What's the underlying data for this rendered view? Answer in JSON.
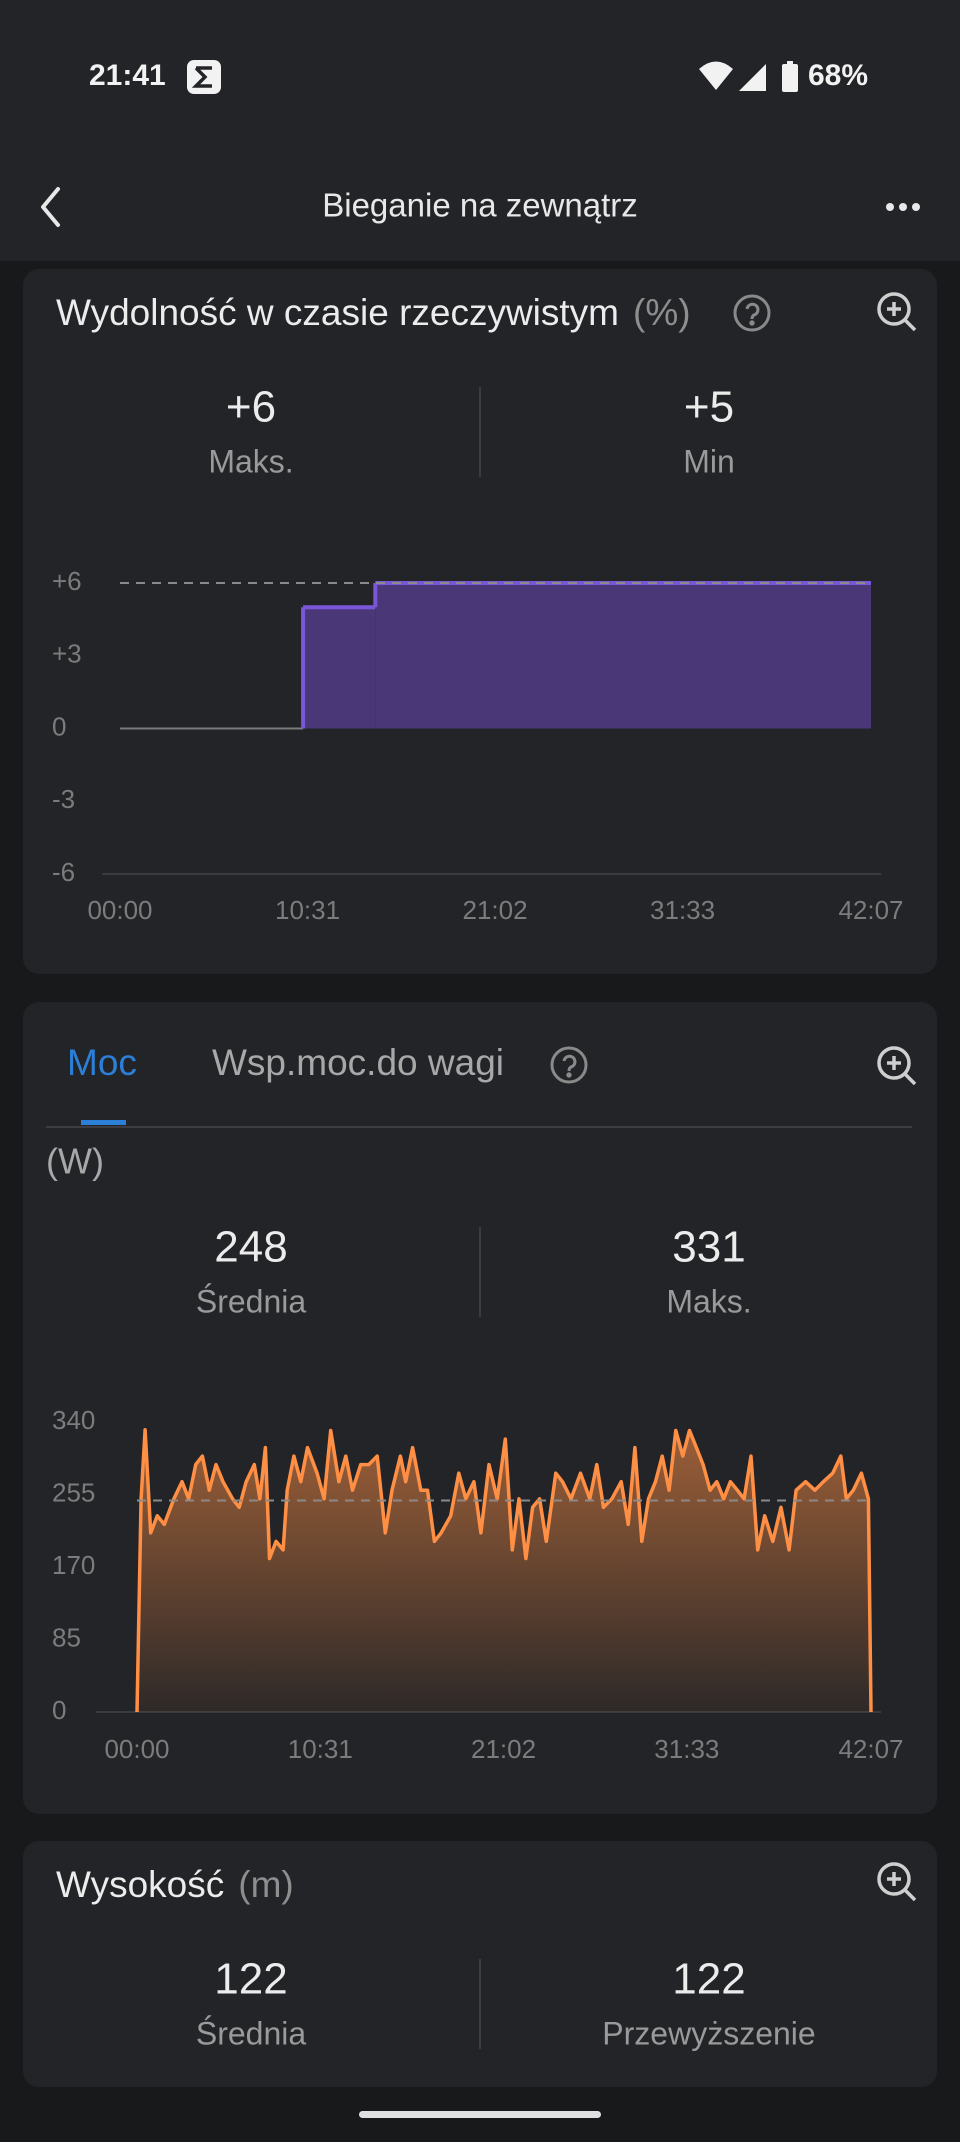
{
  "status_bar": {
    "time": "21:41",
    "battery": "68%"
  },
  "header": {
    "title": "Bieganie na zewnątrz"
  },
  "cards": [
    {
      "title": "Wydolność w czasie rzeczywistym",
      "unit": "(%)",
      "stats": [
        {
          "value": "+6",
          "label": "Maks."
        },
        {
          "value": "+5",
          "label": "Min"
        }
      ],
      "chart": {
        "type": "step-area",
        "bins": [
          0,
          616,
          859,
          2527
        ],
        "values": [
          0,
          5,
          6
        ],
        "color": "#7a56d9",
        "fill": "#4a3777",
        "zero_color": "#7a7a7a",
        "reference": 6,
        "xlim": [
          0,
          2527
        ],
        "ylim": [
          -6,
          6
        ],
        "xticks": [
          {
            "value": 0,
            "label": "00:00"
          },
          {
            "value": 631,
            "label": "10:31"
          },
          {
            "value": 1262,
            "label": "21:02"
          },
          {
            "value": 1893,
            "label": "31:33"
          },
          {
            "value": 2527,
            "label": "42:07"
          }
        ],
        "yticks": [
          {
            "value": 6,
            "label": "+6"
          },
          {
            "value": 3,
            "label": "+3"
          },
          0,
          -3,
          -6
        ]
      }
    },
    {
      "tabs": [
        "Moc",
        "Wsp.moc.do wagi"
      ],
      "unit": "(W)",
      "stats": [
        {
          "value": 248,
          "label": "Średnia"
        },
        {
          "value": 331,
          "label": "Maks."
        }
      ],
      "chart": {
        "type": "area",
        "x": [
          0,
          14,
          28,
          47,
          70,
          94,
          127,
          155,
          178,
          202,
          225,
          249,
          272,
          296,
          329,
          352,
          376,
          404,
          423,
          442,
          456,
          479,
          503,
          517,
          540,
          564,
          587,
          620,
          644,
          667,
          695,
          719,
          742,
          770,
          798,
          827,
          855,
          878,
          907,
          925,
          949,
          977,
          1000,
          1024,
          1047,
          1080,
          1108,
          1132,
          1160,
          1184,
          1212,
          1240,
          1268,
          1292,
          1315,
          1339,
          1362,
          1386,
          1409,
          1442,
          1465,
          1494,
          1527,
          1559,
          1583,
          1606,
          1635,
          1667,
          1691,
          1714,
          1738,
          1761,
          1785,
          1808,
          1832,
          1855,
          1879,
          1902,
          1926,
          1949,
          1973,
          1996,
          2020,
          2043,
          2067,
          2090,
          2114,
          2137,
          2161,
          2189,
          2217,
          2245,
          2269,
          2302,
          2334,
          2363,
          2395,
          2423,
          2442,
          2466,
          2494,
          2518,
          2527
        ],
        "values": [
          0,
          250,
          331,
          210,
          230,
          220,
          250,
          270,
          250,
          290,
          300,
          260,
          290,
          270,
          250,
          240,
          270,
          290,
          250,
          310,
          180,
          200,
          190,
          260,
          300,
          270,
          310,
          280,
          250,
          330,
          270,
          300,
          260,
          290,
          290,
          300,
          210,
          260,
          300,
          270,
          310,
          260,
          260,
          200,
          210,
          230,
          280,
          250,
          270,
          210,
          290,
          250,
          320,
          190,
          250,
          180,
          240,
          250,
          200,
          280,
          270,
          250,
          280,
          250,
          290,
          240,
          250,
          270,
          220,
          310,
          200,
          250,
          270,
          300,
          260,
          330,
          300,
          330,
          310,
          290,
          260,
          270,
          250,
          270,
          260,
          250,
          300,
          190,
          230,
          200,
          240,
          190,
          260,
          270,
          260,
          270,
          280,
          300,
          250,
          260,
          280,
          250,
          0
        ],
        "color": "#ff8f45",
        "reference": 248,
        "xlim": [
          0,
          2527
        ],
        "ylim": [
          0,
          340
        ],
        "xticks": [
          {
            "value": 0,
            "label": "00:00"
          },
          {
            "value": 631,
            "label": "10:31"
          },
          {
            "value": 1262,
            "label": "21:02"
          },
          {
            "value": 1893,
            "label": "31:33"
          },
          {
            "value": 2527,
            "label": "42:07"
          }
        ],
        "yticks": [
          340,
          255,
          170,
          85,
          0
        ]
      }
    },
    {
      "title": "Wysokość",
      "unit": "(m)",
      "stats": [
        {
          "value": 122,
          "label": "Średnia"
        },
        {
          "value": 122,
          "label": "Przewyższenie"
        }
      ]
    }
  ]
}
